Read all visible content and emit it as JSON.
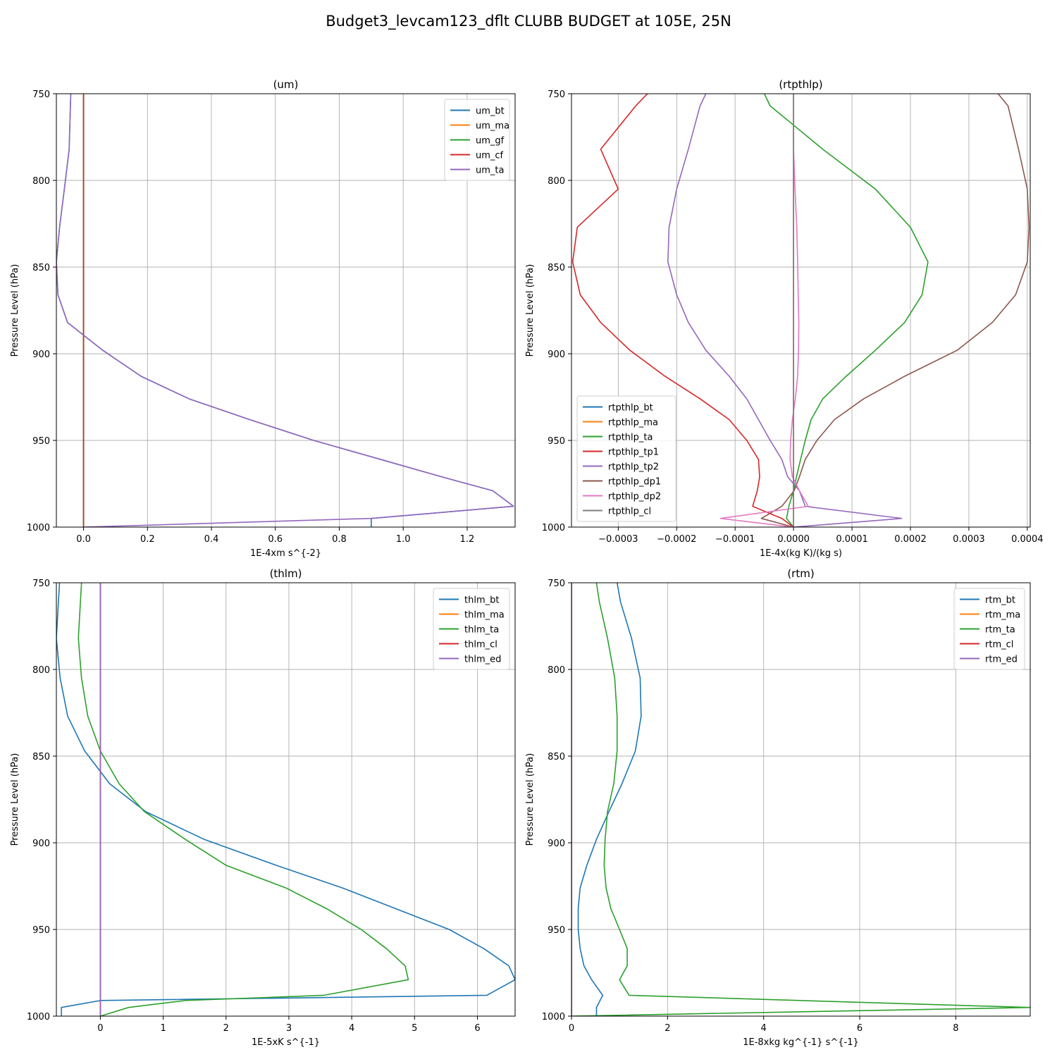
{
  "suptitle": "Budget3_levcam123_dflt CLUBB BUDGET at 105E, 25N",
  "chart_data": [
    {
      "type": "line",
      "title": "(um)",
      "xlabel": "1E-4xm s^{-2}",
      "ylabel": "Pressure Level (hPa)",
      "xlim": [
        -0.085,
        1.35
      ],
      "ylim": [
        1000,
        750
      ],
      "xticks": [
        0.0,
        0.2,
        0.4,
        0.6,
        0.8,
        1.0,
        1.2
      ],
      "xtick_labels": [
        "0.0",
        "0.2",
        "0.4",
        "0.6",
        "0.8",
        "1.0",
        "1.2"
      ],
      "yticks": [
        750,
        800,
        850,
        900,
        950,
        1000
      ],
      "ytick_labels": [
        "750",
        "800",
        "850",
        "900",
        "950",
        "1000"
      ],
      "legend_position": "upper right",
      "levels": [
        750,
        782,
        805,
        827,
        847,
        866,
        882,
        898,
        913,
        926,
        938,
        950,
        961,
        971,
        979,
        988,
        995,
        1000
      ],
      "series": [
        {
          "name": "um_bt",
          "color": "#1f77b4",
          "x": [
            -0.04,
            -0.045,
            -0.06,
            -0.075,
            -0.085,
            -0.08,
            -0.05,
            0.06,
            0.18,
            0.33,
            0.52,
            0.72,
            0.93,
            1.12,
            1.28,
            1.345,
            0.9,
            0.9
          ]
        },
        {
          "name": "um_ma",
          "color": "#ff7f0e",
          "x": [
            0,
            0,
            0,
            0,
            0,
            0,
            0,
            0,
            0,
            0,
            0,
            0,
            0,
            0,
            0,
            0,
            0,
            0
          ]
        },
        {
          "name": "um_gf",
          "color": "#2ca02c",
          "x": [
            0,
            0,
            0,
            0,
            0,
            0,
            0,
            0,
            0,
            0,
            0,
            0,
            0,
            0,
            0,
            0,
            0,
            0
          ]
        },
        {
          "name": "um_cf",
          "color": "#d62728",
          "x": [
            0,
            0,
            0,
            0,
            0,
            0,
            0,
            0,
            0,
            0,
            0,
            0,
            0,
            0,
            0,
            0,
            0,
            0
          ]
        },
        {
          "name": "um_ta",
          "color": "#9467bd",
          "x": [
            -0.04,
            -0.045,
            -0.06,
            -0.075,
            -0.085,
            -0.08,
            -0.05,
            0.06,
            0.18,
            0.33,
            0.52,
            0.72,
            0.93,
            1.12,
            1.28,
            1.345,
            0.9,
            0.0
          ]
        }
      ]
    },
    {
      "type": "line",
      "title": "(rtpthlp)",
      "xlabel": "1E-4x(kg K)/(kg s)",
      "ylabel": "Pressure Level (hPa)",
      "xlim": [
        -0.00038,
        0.000405
      ],
      "ylim": [
        1000,
        750
      ],
      "xticks": [
        -0.0003,
        -0.0002,
        -0.0001,
        0.0,
        0.0001,
        0.0002,
        0.0003,
        0.0004
      ],
      "xtick_labels": [
        "−0.0003",
        "−0.0002",
        "−0.0001",
        "0.0000",
        "0.0001",
        "0.0002",
        "0.0003",
        "0.0004"
      ],
      "yticks": [
        750,
        800,
        850,
        900,
        950,
        1000
      ],
      "ytick_labels": [
        "750",
        "800",
        "850",
        "900",
        "950",
        "1000"
      ],
      "legend_position": "lower left",
      "levels": [
        750,
        757,
        782,
        805,
        827,
        847,
        866,
        882,
        898,
        913,
        926,
        938,
        950,
        961,
        971,
        979,
        988,
        995,
        1000
      ],
      "series": [
        {
          "name": "rtpthlp_bt",
          "color": "#1f77b4",
          "x": [
            0,
            0,
            0,
            0,
            0,
            0,
            0,
            0,
            0,
            0,
            0,
            0,
            0,
            0,
            0,
            0,
            0,
            0,
            0
          ]
        },
        {
          "name": "rtpthlp_ma",
          "color": "#ff7f0e",
          "x": [
            0,
            0,
            0,
            0,
            0,
            0,
            0,
            0,
            0,
            0,
            0,
            0,
            0,
            0,
            0,
            0,
            0,
            0,
            0
          ]
        },
        {
          "name": "rtpthlp_ta",
          "color": "#2ca02c",
          "x": [
            -5e-05,
            -4e-05,
            5e-05,
            0.00014,
            0.0002,
            0.00023,
            0.00022,
            0.00019,
            0.00014,
            9e-05,
            5e-05,
            3e-05,
            2e-05,
            1.2e-05,
            5e-06,
            0.0,
            -8e-06,
            -1.2e-05,
            0.0
          ]
        },
        {
          "name": "rtpthlp_tp1",
          "color": "#d62728",
          "x": [
            -0.00025,
            -0.00027,
            -0.00033,
            -0.0003,
            -0.00037,
            -0.000378,
            -0.000365,
            -0.00033,
            -0.00028,
            -0.00022,
            -0.00016,
            -0.00011,
            -8e-05,
            -6e-05,
            -5.8e-05,
            -6.2e-05,
            -7e-05,
            -2e-05,
            0.0
          ]
        },
        {
          "name": "rtpthlp_tp2",
          "color": "#9467bd",
          "x": [
            -0.00015,
            -0.00016,
            -0.00018,
            -0.0002,
            -0.000213,
            -0.000215,
            -0.0002,
            -0.00018,
            -0.00015,
            -0.00011,
            -8e-05,
            -6e-05,
            -4e-05,
            -2e-05,
            -1e-05,
            1e-05,
            2e-05,
            0.000185,
            0.0
          ]
        },
        {
          "name": "rtpthlp_dp1",
          "color": "#8c564b",
          "x": [
            0.00035,
            0.000367,
            0.000385,
            0.0004,
            0.000403,
            0.0004,
            0.00038,
            0.00034,
            0.00028,
            0.00019,
            0.00012,
            7e-05,
            4e-05,
            2e-05,
            1e-05,
            1e-06,
            -2e-05,
            -5.5e-05,
            0.0
          ]
        },
        {
          "name": "rtpthlp_dp2",
          "color": "#e377c2",
          "x": [
            0,
            0,
            0,
            2.5e-06,
            5.5e-06,
            7e-06,
            8e-06,
            9e-06,
            8.5e-06,
            7e-06,
            3e-06,
            -2e-06,
            -5e-06,
            -6e-06,
            -2e-06,
            1e-05,
            2.5e-05,
            -0.000125,
            0.0
          ]
        },
        {
          "name": "rtpthlp_cl",
          "color": "#7f7f7f",
          "x": [
            0,
            0,
            0,
            0,
            0,
            0,
            0,
            0,
            0,
            0,
            0,
            0,
            0,
            0,
            0,
            0,
            0,
            0,
            0
          ]
        }
      ]
    },
    {
      "type": "line",
      "title": "(thlm)",
      "xlabel": "1E-5xK s^{-1}",
      "ylabel": "Pressure Level (hPa)",
      "xlim": [
        -0.7,
        6.6
      ],
      "ylim": [
        1000,
        750
      ],
      "xticks": [
        0,
        1,
        2,
        3,
        4,
        5,
        6
      ],
      "xtick_labels": [
        "0",
        "1",
        "2",
        "3",
        "4",
        "5",
        "6"
      ],
      "yticks": [
        750,
        800,
        850,
        900,
        950,
        1000
      ],
      "ytick_labels": [
        "750",
        "800",
        "850",
        "900",
        "950",
        "1000"
      ],
      "legend_position": "upper right",
      "levels": [
        750,
        782,
        805,
        827,
        847,
        866,
        882,
        898,
        913,
        926,
        938,
        950,
        961,
        971,
        979,
        988,
        991,
        995,
        1000
      ],
      "series": [
        {
          "name": "thlm_bt",
          "color": "#1f77b4",
          "x": [
            -0.65,
            -0.7,
            -0.64,
            -0.52,
            -0.25,
            0.15,
            0.72,
            1.65,
            2.8,
            3.85,
            4.7,
            5.55,
            6.1,
            6.5,
            6.6,
            6.15,
            0.0,
            -0.62,
            -0.62
          ]
        },
        {
          "name": "thlm_ma",
          "color": "#ff7f0e",
          "x": [
            0,
            0,
            0,
            0,
            0,
            0,
            0,
            0,
            0,
            0,
            0,
            0,
            0,
            0,
            0,
            0,
            0,
            0,
            0
          ]
        },
        {
          "name": "thlm_ta",
          "color": "#2ca02c",
          "x": [
            -0.3,
            -0.35,
            -0.3,
            -0.2,
            0.0,
            0.3,
            0.7,
            1.35,
            2.0,
            2.95,
            3.6,
            4.15,
            4.55,
            4.85,
            4.9,
            3.55,
            1.35,
            0.45,
            0.0
          ]
        },
        {
          "name": "thlm_cl",
          "color": "#d62728",
          "x": [
            0,
            0,
            0,
            0,
            0,
            0,
            0,
            0,
            0,
            0,
            0,
            0,
            0,
            0,
            0,
            0,
            0,
            0,
            0
          ]
        },
        {
          "name": "thlm_ed",
          "color": "#9467bd",
          "x": [
            0,
            0,
            0,
            0,
            0,
            0,
            0,
            0,
            0,
            0,
            0,
            0,
            0,
            0,
            0,
            0,
            0,
            0,
            0
          ]
        }
      ]
    },
    {
      "type": "line",
      "title": "(rtm)",
      "xlabel": "1E-8xkg kg^{-1} s^{-1}",
      "ylabel": "Pressure Level (hPa)",
      "xlim": [
        0,
        9.55
      ],
      "ylim": [
        1000,
        750
      ],
      "xticks": [
        0,
        2,
        4,
        6,
        8
      ],
      "xtick_labels": [
        "0",
        "2",
        "4",
        "6",
        "8"
      ],
      "yticks": [
        750,
        800,
        850,
        900,
        950,
        1000
      ],
      "ytick_labels": [
        "750",
        "800",
        "850",
        "900",
        "950",
        "1000"
      ],
      "legend_position": "upper right",
      "levels": [
        750,
        761,
        782,
        805,
        827,
        847,
        866,
        882,
        898,
        913,
        926,
        938,
        950,
        961,
        971,
        979,
        988,
        995,
        1000
      ],
      "series": [
        {
          "name": "rtm_bt",
          "color": "#1f77b4",
          "x": [
            0.95,
            1.02,
            1.25,
            1.43,
            1.45,
            1.33,
            1.05,
            0.78,
            0.52,
            0.32,
            0.18,
            0.14,
            0.14,
            0.18,
            0.26,
            0.42,
            0.65,
            0.52,
            0.52
          ]
        },
        {
          "name": "rtm_ma",
          "color": "#ff7f0e",
          "x": [
            0,
            0,
            0,
            0,
            0,
            0,
            0,
            0,
            0,
            0,
            0,
            0,
            0,
            0,
            0,
            0,
            0,
            0,
            0
          ]
        },
        {
          "name": "rtm_ta",
          "color": "#2ca02c",
          "x": [
            0.52,
            0.58,
            0.75,
            0.9,
            0.95,
            0.95,
            0.88,
            0.75,
            0.7,
            0.68,
            0.72,
            0.82,
            1.0,
            1.16,
            1.16,
            1.0,
            1.2,
            9.55,
            0.0
          ]
        },
        {
          "name": "rtm_cl",
          "color": "#d62728",
          "x": [
            0,
            0,
            0,
            0,
            0,
            0,
            0,
            0,
            0,
            0,
            0,
            0,
            0,
            0,
            0,
            0,
            0,
            0,
            0
          ]
        },
        {
          "name": "rtm_ed",
          "color": "#9467bd",
          "x": [
            0,
            0,
            0,
            0,
            0,
            0,
            0,
            0,
            0,
            0,
            0,
            0,
            0,
            0,
            0,
            0,
            0,
            0,
            0
          ]
        }
      ]
    }
  ]
}
